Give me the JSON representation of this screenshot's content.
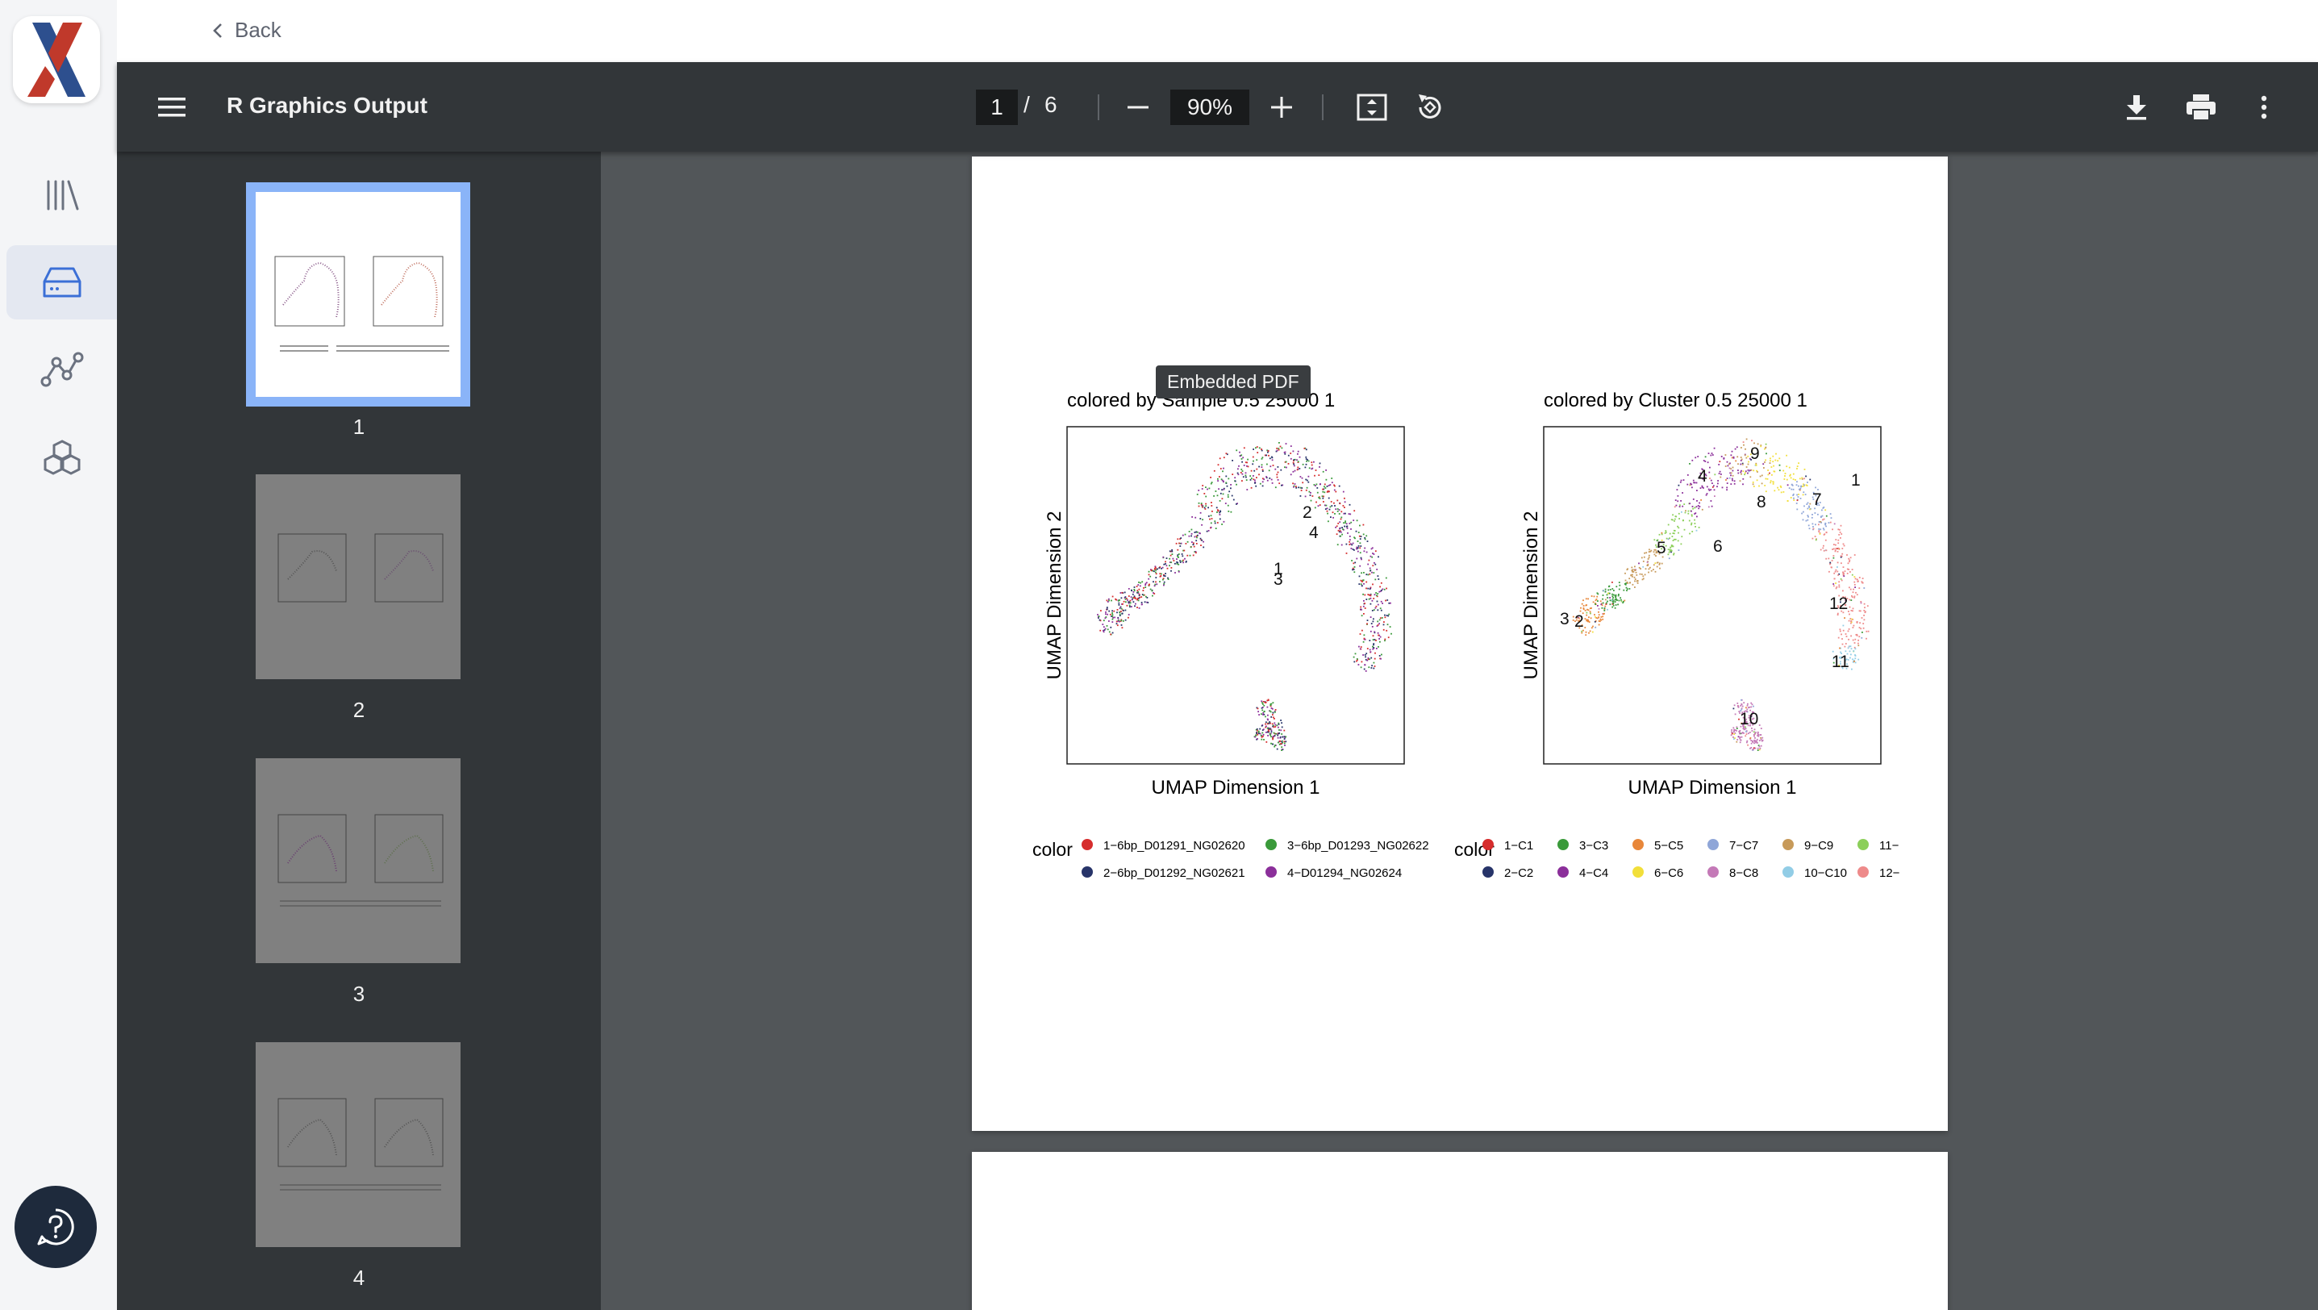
{
  "nav": {
    "back_label": "Back"
  },
  "rail": {
    "items": [
      {
        "icon": "library-icon"
      },
      {
        "icon": "storage-icon",
        "active": true
      },
      {
        "icon": "workflow-icon"
      },
      {
        "icon": "packages-icon"
      }
    ],
    "help_icon": "help-icon"
  },
  "toolbar": {
    "title": "R Graphics Output",
    "current_page": "1",
    "page_separator": "/",
    "total_pages": "6",
    "zoom": "90%"
  },
  "thumbnails": [
    {
      "label": "1",
      "selected": true
    },
    {
      "label": "2"
    },
    {
      "label": "3"
    },
    {
      "label": "4"
    }
  ],
  "tooltip": "Embedded PDF",
  "pdf_page": {
    "plots": [
      {
        "title": "colored by Sample 0.5 25000 1",
        "xlabel": "UMAP Dimension 1",
        "ylabel": "UMAP Dimension 2",
        "cluster_labels": [
          "2",
          "4",
          "1",
          "3"
        ],
        "legend_title": "color",
        "legend": [
          {
            "label": "1−6bp_D01291_NG02620",
            "color": "#d62d2d"
          },
          {
            "label": "3−6bp_D01293_NG02622",
            "color": "#3a9a3a"
          },
          {
            "label": "2−6bp_D01292_NG02621",
            "color": "#273469"
          },
          {
            "label": "4−D01294_NG02624",
            "color": "#8b2f9a"
          }
        ]
      },
      {
        "title": "colored by Cluster 0.5 25000 1",
        "xlabel": "UMAP Dimension 1",
        "ylabel": "UMAP Dimension 2",
        "cluster_labels": [
          "9",
          "4",
          "1",
          "8",
          "7",
          "5",
          "6",
          "3",
          "2",
          "12",
          "11",
          "10"
        ],
        "legend_title": "color",
        "legend": [
          {
            "label": "1−C1",
            "color": "#d62d2d"
          },
          {
            "label": "3−C3",
            "color": "#3a9a3a"
          },
          {
            "label": "5−C5",
            "color": "#e8873a"
          },
          {
            "label": "7−C7",
            "color": "#8fa6d8"
          },
          {
            "label": "9−C9",
            "color": "#c79a5a"
          },
          {
            "label": "11−",
            "color": "#8ccf5a"
          },
          {
            "label": "2−C2",
            "color": "#273469"
          },
          {
            "label": "4−C4",
            "color": "#8b2f9a"
          },
          {
            "label": "6−C6",
            "color": "#f2df3a"
          },
          {
            "label": "8−C8",
            "color": "#c479b7"
          },
          {
            "label": "10−C10",
            "color": "#92cde6"
          },
          {
            "label": "12−",
            "color": "#ee8a8a"
          }
        ]
      }
    ]
  }
}
